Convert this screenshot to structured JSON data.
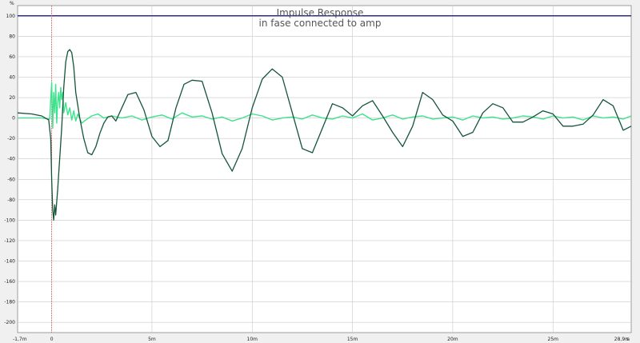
{
  "chart_data": {
    "type": "line",
    "title": "Impulse Response",
    "subtitle": "in fase connected to amp",
    "y_unit_label": "%",
    "x_unit_label": "s",
    "xlim": [
      -1.7,
      28.9
    ],
    "ylim": [
      -210,
      110
    ],
    "grid": true,
    "legend": "none",
    "x_ticks": [
      {
        "value": -1.7,
        "label": "-1,7m"
      },
      {
        "value": 0,
        "label": "0"
      },
      {
        "value": 5,
        "label": "5m"
      },
      {
        "value": 10,
        "label": "10m"
      },
      {
        "value": 15,
        "label": "15m"
      },
      {
        "value": 20,
        "label": "20m"
      },
      {
        "value": 25,
        "label": "25m"
      },
      {
        "value": 28.9,
        "label": "28,9m"
      }
    ],
    "y_ticks": [
      100,
      80,
      60,
      40,
      20,
      0,
      -20,
      -40,
      -60,
      -80,
      -100,
      -120,
      -140,
      -160,
      -180,
      -200
    ],
    "reference_lines": [
      {
        "type": "horizontal",
        "y": 100,
        "color": "#2b2b8f"
      },
      {
        "type": "vertical",
        "x": 0,
        "color": "#e05050",
        "style": "dotted"
      }
    ],
    "series": [
      {
        "color": "#14553a",
        "x": [
          -1.7,
          -1.0,
          -0.5,
          -0.15,
          -0.05,
          0.0,
          0.05,
          0.1,
          0.15,
          0.2,
          0.3,
          0.4,
          0.5,
          0.6,
          0.7,
          0.8,
          0.9,
          1.0,
          1.1,
          1.2,
          1.4,
          1.6,
          1.8,
          2.0,
          2.2,
          2.4,
          2.6,
          2.8,
          3.0,
          3.2,
          3.5,
          3.8,
          4.2,
          4.6,
          5.0,
          5.4,
          5.8,
          6.2,
          6.6,
          7.0,
          7.5,
          8.0,
          8.5,
          9.0,
          9.5,
          10.0,
          10.5,
          11.0,
          11.5,
          12.0,
          12.5,
          13.0,
          13.5,
          14.0,
          14.5,
          15.0,
          15.5,
          16.0,
          16.5,
          17.0,
          17.5,
          18.0,
          18.5,
          19.0,
          19.5,
          20.0,
          20.5,
          21.0,
          21.5,
          22.0,
          22.5,
          23.0,
          23.5,
          24.0,
          24.5,
          25.0,
          25.5,
          26.0,
          26.5,
          27.0,
          27.5,
          28.0,
          28.5,
          28.9
        ],
        "y": [
          5,
          4,
          2,
          -2,
          -20,
          -60,
          -90,
          -100,
          -85,
          -95,
          -70,
          -40,
          -10,
          30,
          55,
          65,
          67,
          64,
          50,
          25,
          0,
          -20,
          -34,
          -36,
          -28,
          -15,
          -5,
          1,
          2,
          -3,
          10,
          23,
          25,
          8,
          -18,
          -28,
          -22,
          10,
          33,
          37,
          36,
          5,
          -35,
          -52,
          -30,
          10,
          38,
          48,
          40,
          5,
          -30,
          -34,
          -10,
          14,
          10,
          2,
          12,
          17,
          2,
          -14,
          -28,
          -8,
          25,
          18,
          3,
          -3,
          -18,
          -14,
          5,
          14,
          10,
          -4,
          -4,
          1,
          7,
          4,
          -8,
          -8,
          -6,
          3,
          18,
          12,
          -12,
          -8
        ]
      },
      {
        "color": "#3de28c",
        "x": [
          -1.7,
          -0.5,
          -0.1,
          0.0,
          0.05,
          0.1,
          0.15,
          0.2,
          0.25,
          0.3,
          0.35,
          0.4,
          0.45,
          0.5,
          0.55,
          0.6,
          0.7,
          0.8,
          0.9,
          1.0,
          1.1,
          1.2,
          1.3,
          1.5,
          1.7,
          2.0,
          2.3,
          2.6,
          3.0,
          3.5,
          4.0,
          4.5,
          5.0,
          5.5,
          6.0,
          6.5,
          7.0,
          7.5,
          8.0,
          8.5,
          9.0,
          9.5,
          10.0,
          10.5,
          11.0,
          11.5,
          12.0,
          12.5,
          13.0,
          13.5,
          14.0,
          14.5,
          15.0,
          15.5,
          16.0,
          16.5,
          17.0,
          17.5,
          18.0,
          18.5,
          19.0,
          19.5,
          20.0,
          20.5,
          21.0,
          21.5,
          22.0,
          22.5,
          23.0,
          23.5,
          24.0,
          24.5,
          25.0,
          25.5,
          26.0,
          26.5,
          27.0,
          27.5,
          28.0,
          28.5,
          28.9
        ],
        "y": [
          0,
          0,
          -1,
          35,
          -10,
          25,
          5,
          33,
          -5,
          15,
          25,
          10,
          30,
          18,
          25,
          5,
          15,
          3,
          10,
          -2,
          7,
          -3,
          4,
          -5,
          -2,
          2,
          4,
          0,
          2,
          0,
          2,
          -2,
          1,
          3,
          -1,
          5,
          1,
          2,
          -1,
          1,
          -3,
          0,
          4,
          2,
          -2,
          0,
          1,
          -1,
          3,
          0,
          -1,
          2,
          0,
          4,
          -2,
          0,
          3,
          -1,
          1,
          2,
          -1,
          0,
          1,
          -2,
          2,
          0,
          1,
          -1,
          0,
          2,
          1,
          -1,
          2,
          0,
          1,
          -2,
          2,
          0,
          1,
          -1,
          2
        ]
      }
    ]
  }
}
